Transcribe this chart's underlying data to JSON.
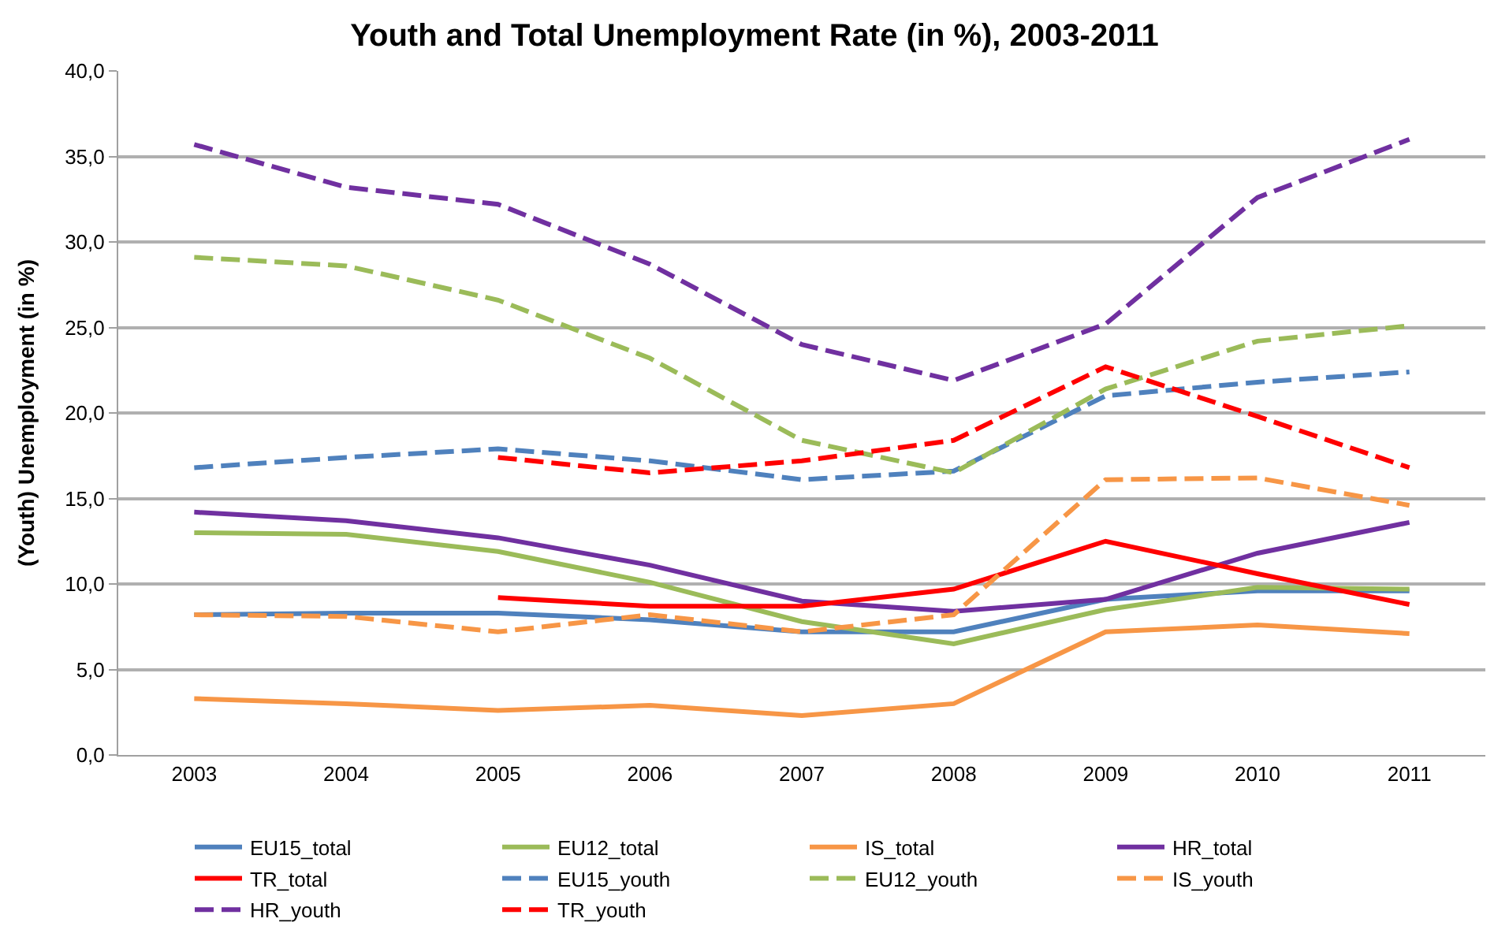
{
  "chart_data": {
    "type": "line",
    "title": "Youth and Total Unemployment Rate (in %), 2003-2011",
    "ylabel": "(Youth) Unemployment (in %)",
    "categories": [
      "2003",
      "2004",
      "2005",
      "2006",
      "2007",
      "2008",
      "2009",
      "2010",
      "2011"
    ],
    "series": [
      {
        "name": "EU15_total",
        "color": "#4f81bd",
        "line_style": "solid",
        "values": [
          8.2,
          8.3,
          8.3,
          7.9,
          7.2,
          7.2,
          9.1,
          9.6,
          9.6
        ]
      },
      {
        "name": "EU12_total",
        "color": "#9bbb59",
        "line_style": "solid",
        "values": [
          13.0,
          12.9,
          11.9,
          10.1,
          7.8,
          6.5,
          8.5,
          9.8,
          9.7
        ]
      },
      {
        "name": "IS_total",
        "color": "#f79646",
        "line_style": "solid",
        "values": [
          3.3,
          3.0,
          2.6,
          2.9,
          2.3,
          3.0,
          7.2,
          7.6,
          7.1
        ]
      },
      {
        "name": "HR_total",
        "color": "#7030a0",
        "line_style": "solid",
        "values": [
          14.2,
          13.7,
          12.7,
          11.1,
          9.0,
          8.4,
          9.1,
          11.8,
          13.6
        ]
      },
      {
        "name": "TR_total",
        "color": "#ff0000",
        "line_style": "solid",
        "values": [
          null,
          null,
          9.2,
          8.7,
          8.7,
          9.7,
          12.5,
          10.6,
          8.8
        ]
      },
      {
        "name": "EU15_youth",
        "color": "#4f81bd",
        "line_style": "dashed",
        "values": [
          16.8,
          17.4,
          17.9,
          17.2,
          16.1,
          16.6,
          21.0,
          21.8,
          22.4
        ]
      },
      {
        "name": "EU12_youth",
        "color": "#9bbb59",
        "line_style": "dashed",
        "values": [
          29.1,
          28.6,
          26.6,
          23.2,
          18.4,
          16.5,
          21.4,
          24.2,
          25.1
        ]
      },
      {
        "name": "IS_youth",
        "color": "#f79646",
        "line_style": "dashed",
        "values": [
          8.2,
          8.1,
          7.2,
          8.2,
          7.2,
          8.2,
          16.1,
          16.2,
          14.6
        ]
      },
      {
        "name": "HR_youth",
        "color": "#7030a0",
        "line_style": "dashed",
        "values": [
          35.7,
          33.2,
          32.2,
          28.7,
          24.0,
          21.9,
          25.2,
          32.6,
          36.0
        ]
      },
      {
        "name": "TR_youth",
        "color": "#ff0000",
        "line_style": "dashed",
        "values": [
          null,
          null,
          17.4,
          16.5,
          17.2,
          18.4,
          22.7,
          19.8,
          16.8
        ]
      }
    ],
    "ylim": [
      0,
      40
    ],
    "yticks": [
      {
        "value": 0,
        "label": "0,0"
      },
      {
        "value": 5,
        "label": "5,0"
      },
      {
        "value": 10,
        "label": "10,0"
      },
      {
        "value": 15,
        "label": "15,0"
      },
      {
        "value": 20,
        "label": "20,0"
      },
      {
        "value": 25,
        "label": "25,0"
      },
      {
        "value": 30,
        "label": "30,0"
      },
      {
        "value": 35,
        "label": "35,0"
      },
      {
        "value": 40,
        "label": "40,0"
      }
    ],
    "grid": "y",
    "legend": "bottom",
    "marker": "none"
  }
}
